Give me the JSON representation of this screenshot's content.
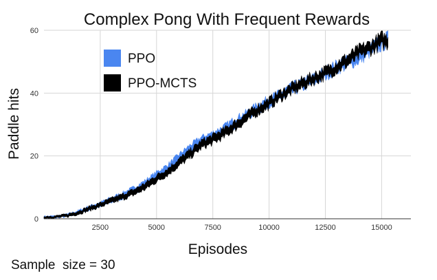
{
  "chart_data": {
    "type": "area",
    "title": "Complex Pong With Frequent Rewards",
    "xlabel": "Episodes",
    "ylabel": "Paddle hits",
    "xlim": [
      0,
      16300
    ],
    "ylim": [
      0,
      60
    ],
    "x_ticks": [
      "2500",
      "5000",
      "7500",
      "10000",
      "12500",
      "15000"
    ],
    "x_tick_values": [
      2500,
      5000,
      7500,
      10000,
      12500,
      15000
    ],
    "y_ticks": [
      "0",
      "20",
      "40",
      "60"
    ],
    "y_tick_values": [
      0,
      20,
      40,
      60
    ],
    "grid": true,
    "legend_position": "top-left",
    "series": [
      {
        "name": "PPO",
        "color": "#4a86f0",
        "x": [
          0,
          500,
          1000,
          1500,
          2000,
          2500,
          3000,
          3500,
          4000,
          4500,
          5000,
          5500,
          6000,
          6500,
          7000,
          7500,
          8000,
          8500,
          9000,
          9500,
          10000,
          10500,
          11000,
          11500,
          12000,
          12500,
          13000,
          13500,
          14000,
          14500,
          15000,
          15300
        ],
        "low": [
          0.2,
          0.3,
          0.6,
          1.5,
          2.8,
          4.0,
          5.2,
          6.5,
          8.2,
          10.2,
          12.8,
          15.0,
          18.0,
          21.0,
          23.8,
          25.5,
          27.2,
          29.5,
          32.0,
          34.2,
          36.2,
          38.0,
          40.0,
          41.5,
          43.0,
          45.0,
          47.0,
          48.5,
          50.0,
          52.5,
          54.5,
          55.5
        ],
        "high": [
          0.8,
          0.9,
          1.4,
          2.5,
          4.0,
          5.2,
          6.8,
          8.3,
          10.0,
          12.2,
          14.8,
          17.2,
          20.5,
          23.5,
          26.0,
          27.5,
          29.5,
          32.0,
          34.0,
          36.5,
          38.5,
          40.3,
          42.5,
          44.0,
          45.5,
          47.5,
          49.5,
          51.0,
          52.5,
          55.0,
          57.5,
          58.5
        ]
      },
      {
        "name": "PPO-MCTS",
        "color": "#000000",
        "x": [
          0,
          500,
          1000,
          1500,
          2000,
          2500,
          3000,
          3500,
          4000,
          4500,
          5000,
          5500,
          6000,
          6500,
          7000,
          7500,
          8000,
          8500,
          9000,
          9500,
          10000,
          10500,
          11000,
          11500,
          12000,
          12500,
          13000,
          13500,
          14000,
          14500,
          15000,
          15300
        ],
        "low": [
          0.2,
          0.3,
          0.6,
          1.4,
          2.6,
          3.8,
          5.0,
          6.2,
          7.6,
          9.4,
          11.8,
          14.0,
          16.8,
          19.5,
          22.5,
          24.0,
          26.0,
          28.5,
          31.0,
          33.5,
          35.5,
          38.0,
          40.0,
          41.8,
          43.5,
          45.0,
          47.0,
          49.0,
          51.5,
          53.0,
          55.0,
          55.0
        ],
        "high": [
          0.8,
          0.9,
          1.4,
          2.4,
          3.8,
          5.0,
          6.5,
          7.8,
          9.3,
          11.3,
          13.8,
          16.0,
          19.0,
          21.8,
          24.8,
          26.5,
          28.5,
          31.0,
          33.5,
          36.0,
          38.0,
          40.5,
          42.5,
          44.5,
          46.0,
          47.8,
          49.8,
          52.0,
          54.5,
          56.0,
          58.5,
          58.0
        ]
      }
    ]
  },
  "footnote": "Sample  size = 30"
}
